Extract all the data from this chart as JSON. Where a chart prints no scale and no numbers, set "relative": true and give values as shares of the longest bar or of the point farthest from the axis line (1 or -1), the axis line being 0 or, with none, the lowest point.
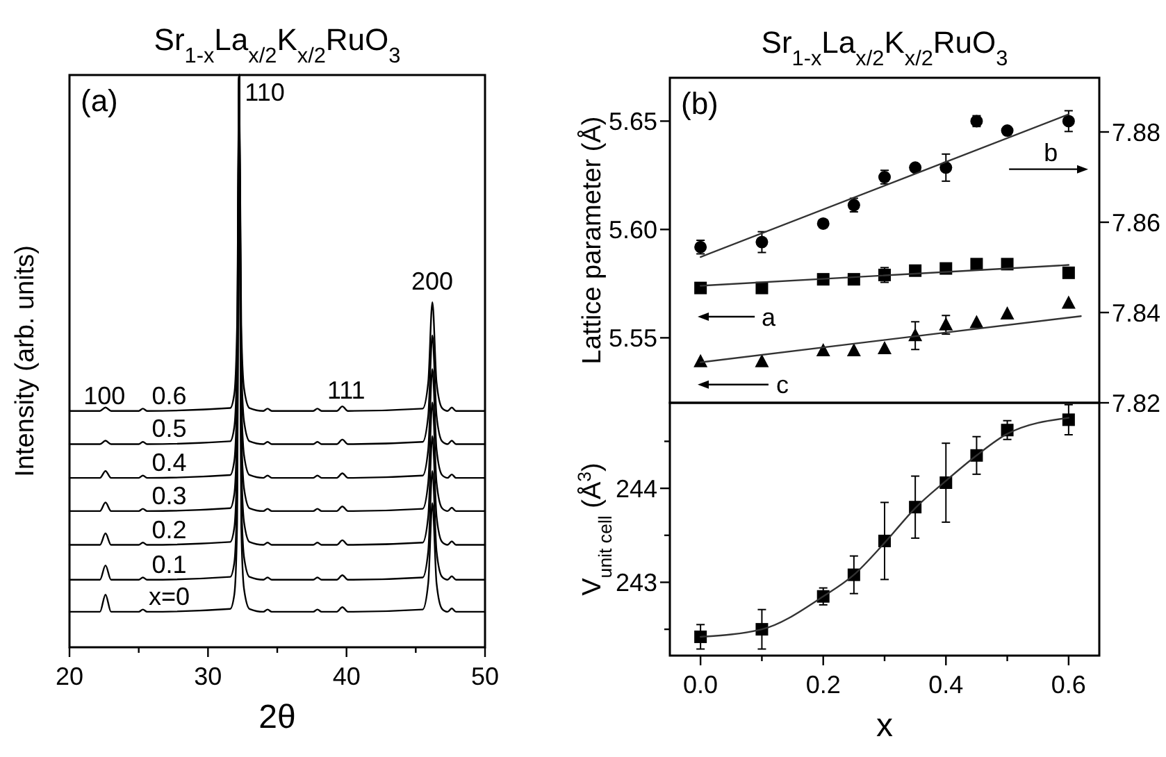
{
  "chart_data": [
    {
      "type": "line",
      "title": "Sr$_{1-x}$La$_{x/2}$K$_{x/2}$RuO$_{3}$",
      "xlabel": "2θ",
      "ylabel": "Intensity (arb. units)",
      "relative": true,
      "tick_labels": "x",
      "marker": "none",
      "xlim": [
        20,
        50
      ],
      "xticks": [
        20,
        {
          "value": 25,
          "label": null
        },
        30,
        {
          "value": 35,
          "label": null
        },
        40,
        {
          "value": 45,
          "label": null
        },
        50
      ],
      "x": [
        20,
        22.2,
        22.6,
        23,
        25,
        25.3,
        25.6,
        31.6,
        31.9,
        32.1,
        32.25,
        32.4,
        32.6,
        33,
        34,
        34.3,
        34.6,
        37.6,
        37.9,
        38.2,
        39.3,
        39.7,
        40.1,
        45.5,
        45.9,
        46.2,
        46.5,
        46.9,
        47.3,
        47.6,
        47.9,
        50
      ],
      "series": [
        {
          "name": "x=0",
          "color": "#000000",
          "values": [
            0.062,
            0.062,
            0.092,
            0.062,
            0.062,
            0.066,
            0.062,
            0.067,
            0.092,
            0.212,
            1,
            0.212,
            0.102,
            0.067,
            0.062,
            0.066,
            0.062,
            0.062,
            0.066,
            0.062,
            0.062,
            0.07,
            0.062,
            0.066,
            0.112,
            0.252,
            0.112,
            0.067,
            0.062,
            0.068,
            0.062,
            0.062
          ]
        },
        {
          "name": "0.1",
          "color": "#000000",
          "values": [
            0.118,
            0.118,
            0.143,
            0.118,
            0.118,
            0.122,
            0.118,
            0.123,
            0.148,
            0.268,
            1,
            0.268,
            0.158,
            0.123,
            0.118,
            0.122,
            0.118,
            0.118,
            0.122,
            0.118,
            0.118,
            0.126,
            0.118,
            0.122,
            0.168,
            0.308,
            0.168,
            0.123,
            0.118,
            0.124,
            0.118,
            0.118
          ]
        },
        {
          "name": "0.2",
          "color": "#000000",
          "values": [
            0.179,
            0.179,
            0.199,
            0.179,
            0.179,
            0.183,
            0.179,
            0.184,
            0.209,
            0.329,
            1,
            0.329,
            0.219,
            0.184,
            0.179,
            0.183,
            0.179,
            0.179,
            0.183,
            0.179,
            0.179,
            0.187,
            0.179,
            0.183,
            0.229,
            0.369,
            0.229,
            0.184,
            0.179,
            0.185,
            0.179,
            0.179
          ]
        },
        {
          "name": "0.3",
          "color": "#000000",
          "values": [
            0.238,
            0.238,
            0.253,
            0.238,
            0.238,
            0.242,
            0.238,
            0.243,
            0.268,
            0.388,
            1,
            0.388,
            0.278,
            0.243,
            0.238,
            0.242,
            0.238,
            0.238,
            0.242,
            0.238,
            0.238,
            0.246,
            0.238,
            0.242,
            0.288,
            0.428,
            0.288,
            0.243,
            0.238,
            0.244,
            0.238,
            0.238
          ]
        },
        {
          "name": "0.4",
          "color": "#000000",
          "values": [
            0.296,
            0.296,
            0.308,
            0.296,
            0.296,
            0.3,
            0.296,
            0.301,
            0.326,
            0.446,
            1,
            0.446,
            0.336,
            0.301,
            0.296,
            0.3,
            0.296,
            0.296,
            0.3,
            0.296,
            0.296,
            0.304,
            0.296,
            0.3,
            0.346,
            0.486,
            0.346,
            0.301,
            0.296,
            0.302,
            0.296,
            0.296
          ]
        },
        {
          "name": "0.5",
          "color": "#000000",
          "values": [
            0.355,
            0.355,
            0.361,
            0.355,
            0.355,
            0.359,
            0.355,
            0.36,
            0.385,
            0.505,
            1,
            0.505,
            0.395,
            0.36,
            0.355,
            0.359,
            0.355,
            0.355,
            0.359,
            0.355,
            0.355,
            0.363,
            0.355,
            0.359,
            0.405,
            0.545,
            0.405,
            0.36,
            0.355,
            0.361,
            0.355,
            0.355
          ]
        },
        {
          "name": "0.6",
          "color": "#000000",
          "values": [
            0.413,
            0.413,
            0.419,
            0.413,
            0.413,
            0.417,
            0.413,
            0.418,
            0.443,
            0.563,
            1,
            0.563,
            0.453,
            0.418,
            0.413,
            0.417,
            0.413,
            0.413,
            0.417,
            0.413,
            0.413,
            0.421,
            0.413,
            0.417,
            0.463,
            0.603,
            0.463,
            0.418,
            0.413,
            0.419,
            0.413,
            0.413
          ]
        }
      ],
      "annotations": [
        "(a)",
        "100",
        "110",
        "111",
        "200"
      ]
    },
    {
      "type": "scatter",
      "title": "Sr$_{1-x}$La$_{x/2}$K$_{x/2}$RuO$_{3}$",
      "ylabel": "Lattice parameter (Å)",
      "tick_labels": "y",
      "xlim": [
        -0.05,
        0.65
      ],
      "ylim": [
        5.52,
        5.67
      ],
      "yticks": [
        5.55,
        {
          "value": 5.6,
          "label": "5.60"
        },
        5.65
      ],
      "y2lim": [
        7.82,
        7.892
      ],
      "y2ticks": [
        7.82,
        7.84,
        7.86,
        7.88
      ],
      "x": [
        0,
        0.1,
        0.2,
        0.25,
        0.3,
        0.35,
        0.4,
        0.45,
        0.5,
        0.6
      ],
      "series": [
        {
          "color": "#000000",
          "marker": "circle",
          "axis": "y2",
          "values": [
            7.8545,
            7.8556,
            7.8597,
            7.8638,
            7.87,
            7.8721,
            7.8721,
            7.8824,
            7.8803,
            7.8824
          ],
          "errors": [
            0.0015,
            0.0023,
            0.0005,
            0.0015,
            0.0015,
            0.0006,
            0.003,
            0.0012,
            0.0005,
            0.0023
          ]
        },
        {
          "color": "#000000",
          "marker": "square",
          "values": [
            5.573,
            5.573,
            5.577,
            5.577,
            5.579,
            5.581,
            5.582,
            5.584,
            5.584,
            5.58
          ],
          "errors": [
            null,
            null,
            null,
            null,
            0.0034,
            null,
            0.0013,
            0.0017,
            null,
            null
          ]
        },
        {
          "color": "#000000",
          "marker": "triangle",
          "values": [
            5.539,
            5.539,
            5.544,
            5.544,
            5.545,
            5.551,
            5.556,
            5.557,
            5.561,
            5.566
          ],
          "errors": [
            null,
            null,
            null,
            null,
            null,
            0.0064,
            0.0043,
            null,
            null,
            null
          ]
        },
        {
          "type": "line",
          "color": "#333333",
          "marker": "none",
          "axis": "y2",
          "x": [
            0,
            0.6
          ],
          "values": [
            7.8523,
            7.8839
          ]
        },
        {
          "type": "line",
          "color": "#333333",
          "marker": "none",
          "x": [
            0,
            0.6
          ],
          "values": [
            5.574,
            5.5836
          ]
        },
        {
          "type": "line",
          "color": "#333333",
          "marker": "none",
          "x": [
            0,
            0.62
          ],
          "values": [
            5.5387,
            5.56
          ]
        }
      ],
      "annotations": [
        "(b)",
        "a",
        "b",
        "c"
      ]
    },
    {
      "type": "scatter",
      "xlabel": "x",
      "ylabel": "V$_{unit cell}$ (Å$^{3}$)",
      "xlim": [
        -0.05,
        0.65
      ],
      "xticks": [
        {
          "value": 0,
          "label": "0.0"
        },
        {
          "value": 0.1,
          "label": null
        },
        0.2,
        {
          "value": 0.3,
          "label": null
        },
        0.4,
        {
          "value": 0.5,
          "label": null
        },
        0.6
      ],
      "ylim": [
        242.22,
        244.91
      ],
      "yticks": [
        {
          "value": 242.5,
          "label": null
        },
        243,
        {
          "value": 243.5,
          "label": null
        },
        244,
        {
          "value": 244.5,
          "label": null
        }
      ],
      "x": [
        0,
        0.1,
        0.2,
        0.25,
        0.3,
        0.35,
        0.4,
        0.45,
        0.5,
        0.6
      ],
      "series": [
        {
          "color": "#000000",
          "marker": "square",
          "values": [
            242.42,
            242.5,
            242.85,
            243.08,
            243.44,
            243.8,
            244.06,
            244.35,
            244.62,
            244.73
          ],
          "errors": [
            0.13,
            0.21,
            0.09,
            0.2,
            0.41,
            0.33,
            0.42,
            0.2,
            0.1,
            0.16
          ]
        },
        {
          "type": "line",
          "color": "#333333",
          "marker": "none",
          "x": [
            0,
            0.1,
            0.2,
            0.25,
            0.3,
            0.35,
            0.4,
            0.45,
            0.5,
            0.6
          ],
          "values": [
            242.42,
            242.5,
            242.85,
            243.08,
            243.42,
            243.79,
            244.08,
            244.35,
            244.58,
            244.75
          ]
        }
      ]
    }
  ]
}
